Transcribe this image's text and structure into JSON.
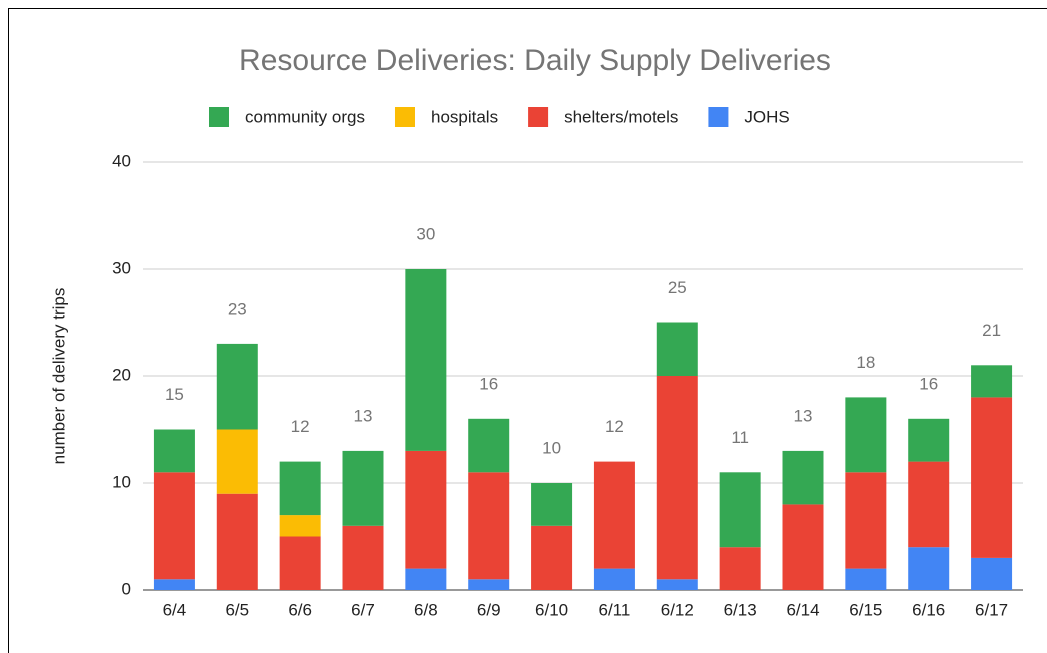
{
  "chart_data": {
    "type": "stacked_bar",
    "title": "Resource Deliveries: Daily Supply Deliveries",
    "y_label": "number of delivery trips",
    "categories": [
      "6/4",
      "6/5",
      "6/6",
      "6/7",
      "6/8",
      "6/9",
      "6/10",
      "6/11",
      "6/12",
      "6/13",
      "6/14",
      "6/15",
      "6/16",
      "6/17"
    ],
    "series": [
      {
        "name": "JOHS",
        "color": "#4285f4",
        "values": [
          1,
          0,
          0,
          0,
          2,
          1,
          0,
          2,
          1,
          0,
          0,
          2,
          4,
          3
        ]
      },
      {
        "name": "shelters/motels",
        "color": "#ea4335",
        "values": [
          10,
          9,
          5,
          6,
          11,
          10,
          6,
          10,
          19,
          4,
          8,
          9,
          8,
          15
        ]
      },
      {
        "name": "hospitals",
        "color": "#fbbc04",
        "values": [
          0,
          6,
          2,
          0,
          0,
          0,
          0,
          0,
          0,
          0,
          0,
          0,
          0,
          0
        ]
      },
      {
        "name": "community orgs",
        "color": "#34a853",
        "values": [
          4,
          8,
          5,
          7,
          17,
          5,
          4,
          0,
          5,
          7,
          5,
          7,
          4,
          3
        ]
      }
    ],
    "totals": [
      15,
      23,
      12,
      13,
      30,
      16,
      10,
      12,
      25,
      11,
      13,
      18,
      16,
      21
    ],
    "legend_order": [
      3,
      2,
      1,
      0
    ],
    "ylim": [
      0,
      40
    ],
    "yticks": [
      0,
      10,
      20,
      30,
      40
    ],
    "grid": true
  }
}
